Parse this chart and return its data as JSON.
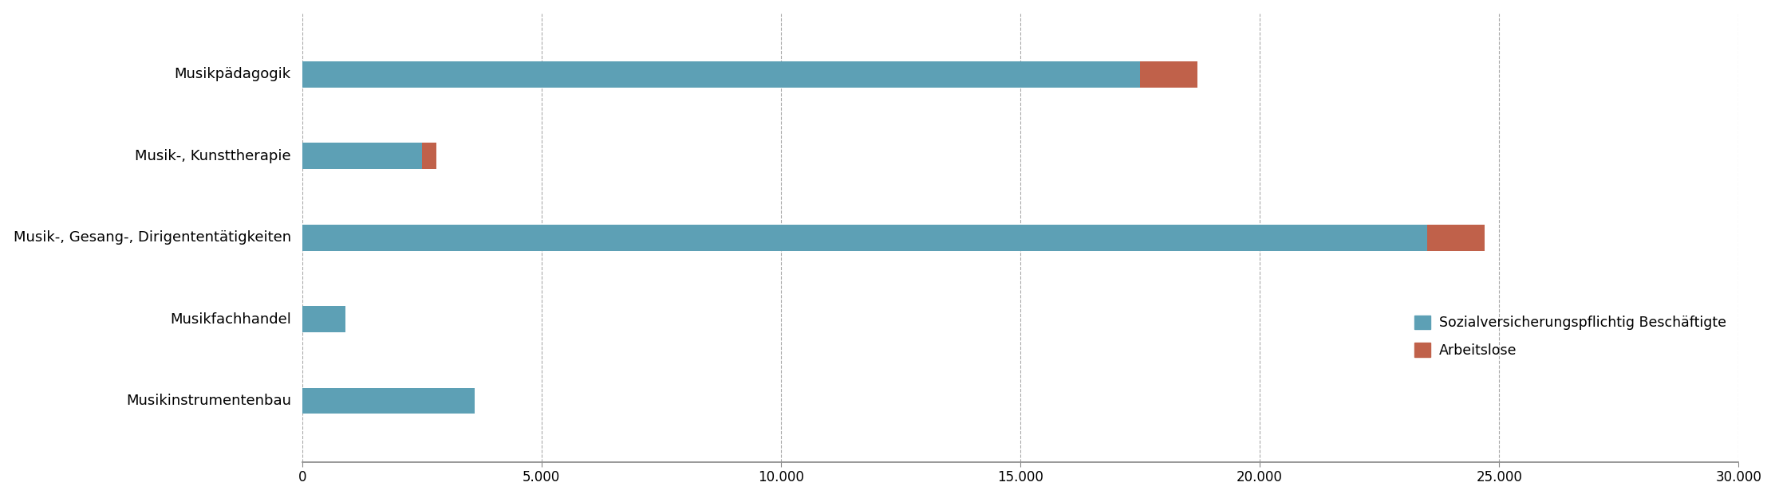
{
  "categories": [
    "Musikinstrumentenbau",
    "Musikfachhandel",
    "Musik-, Gesang-, Dirigententätigkeiten",
    "Musik-, Kunsttherapie",
    "Musikpädagogik"
  ],
  "beschaeftigte": [
    3600,
    900,
    23500,
    2500,
    17500
  ],
  "arbeitslose": [
    0,
    0,
    1200,
    300,
    1200
  ],
  "color_beschaeftigte": "#5da0b5",
  "color_arbeitslose": "#c0614a",
  "xlim": [
    0,
    30000
  ],
  "xticks": [
    0,
    5000,
    10000,
    15000,
    20000,
    25000,
    30000
  ],
  "xtick_labels": [
    "0",
    "5.000",
    "10.000",
    "15.000",
    "20.000",
    "25.000",
    "30.000"
  ],
  "legend_beschaeftigte": "Sozialversicherungspflichtig Beschäftigte",
  "legend_arbeitslose": "Arbeitslose",
  "bar_height": 0.32,
  "background_color": "#ffffff",
  "grid_color": "#aaaaaa",
  "axis_color": "#888888",
  "label_fontsize": 13,
  "tick_fontsize": 12,
  "legend_fontsize": 12.5
}
